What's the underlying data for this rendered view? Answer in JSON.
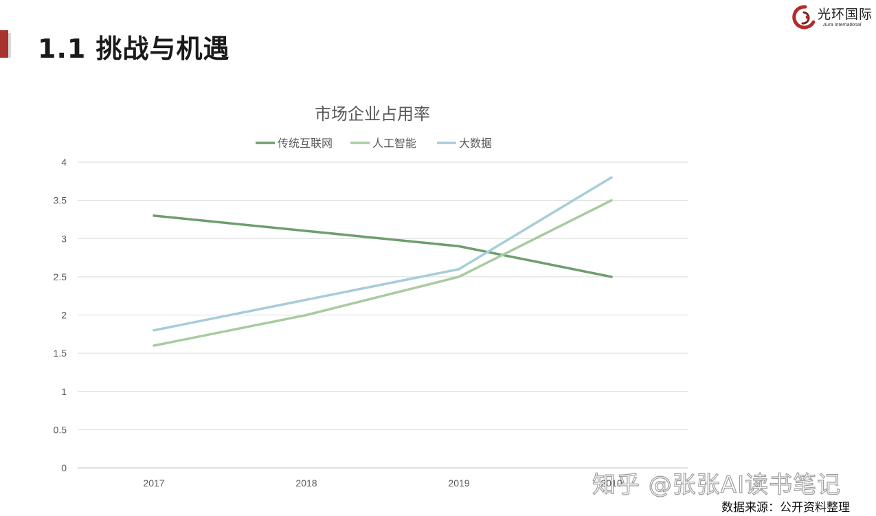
{
  "page": {
    "title": "1.1 挑战与机遇",
    "source_note": "数据来源：公开资料整理",
    "watermark": "知乎 @张张AI读书笔记",
    "accent_color": "#a8322d"
  },
  "logo": {
    "name_cn": "光环国际",
    "name_en": "Aura International",
    "icon": "aura-swirl-logo-icon"
  },
  "chart_data": {
    "type": "line",
    "title": "市场企业占用率",
    "categories": [
      "2017",
      "2018",
      "2019",
      "2010"
    ],
    "series": [
      {
        "name": "传统互联网",
        "values": [
          3.3,
          3.1,
          2.9,
          2.5
        ],
        "color": "#6e9e6e"
      },
      {
        "name": "人工智能",
        "values": [
          1.6,
          2.0,
          2.5,
          3.5
        ],
        "color": "#a9cba0"
      },
      {
        "name": "大数据",
        "values": [
          1.8,
          2.2,
          2.6,
          3.8
        ],
        "color": "#a6cdd8"
      }
    ],
    "yticks": [
      "0",
      "0.5",
      "1",
      "1.5",
      "2",
      "2.5",
      "3",
      "3.5",
      "4"
    ],
    "ylim": [
      0,
      4
    ],
    "grid": true,
    "legend_position": "top"
  }
}
